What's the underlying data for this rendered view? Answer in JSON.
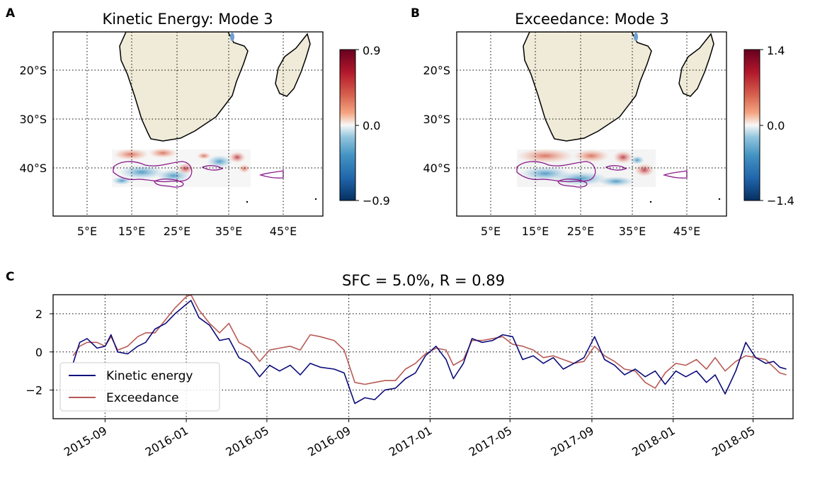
{
  "panels": {
    "a": {
      "letter": "A",
      "title": "Kinetic Energy: Mode 3",
      "lat_ticks": [
        "20°S",
        "30°S",
        "40°S"
      ],
      "lon_ticks": [
        "5°E",
        "15°E",
        "25°E",
        "35°E",
        "45°E"
      ],
      "colorbar": {
        "max_label": "0.9",
        "mid_label": "0.0",
        "min_label": "−0.9",
        "range": [
          -0.9,
          0.9
        ]
      }
    },
    "b": {
      "letter": "B",
      "title": "Exceedance: Mode 3",
      "lat_ticks": [
        "20°S",
        "30°S",
        "40°S"
      ],
      "lon_ticks": [
        "5°E",
        "15°E",
        "25°E",
        "35°E",
        "45°E"
      ],
      "colorbar": {
        "max_label": "1.4",
        "mid_label": "0.0",
        "min_label": "−1.4",
        "range": [
          -1.4,
          1.4
        ]
      }
    },
    "c": {
      "letter": "C",
      "title": "SFC = 5.0%, R = 0.89",
      "y_ticks": [
        "2",
        "0",
        "−2"
      ],
      "x_ticks": [
        "2015-09",
        "2016-01",
        "2016-05",
        "2016-09",
        "2017-01",
        "2017-05",
        "2017-09",
        "2018-01",
        "2018-05"
      ],
      "legend": [
        {
          "label": "Kinetic energy",
          "color": "#0b0b7a"
        },
        {
          "label": "Exceedance",
          "color": "#b85a55"
        }
      ]
    }
  },
  "colors": {
    "land": "#efebd8",
    "contour": "#8b1a8b",
    "kinetic": "#0b0b7a",
    "exceedance": "#b85a55"
  },
  "chart_data": {
    "type": "line",
    "x_label": "",
    "y_label": "",
    "ylim": [
      -3.5,
      3.0
    ],
    "x_range": [
      "2015-06-15",
      "2018-06-30"
    ],
    "grid": true,
    "legend_position": "lower-left",
    "series": [
      {
        "name": "Kinetic energy",
        "points": [
          [
            "2015-07-15",
            -0.6
          ],
          [
            "2015-07-25",
            0.5
          ],
          [
            "2015-08-05",
            0.7
          ],
          [
            "2015-08-20",
            0.2
          ],
          [
            "2015-09-01",
            0.3
          ],
          [
            "2015-09-10",
            0.9
          ],
          [
            "2015-09-20",
            0.0
          ],
          [
            "2015-10-05",
            -0.1
          ],
          [
            "2015-10-20",
            0.3
          ],
          [
            "2015-11-01",
            0.5
          ],
          [
            "2015-11-15",
            1.2
          ],
          [
            "2015-12-01",
            1.5
          ],
          [
            "2015-12-15",
            2.0
          ],
          [
            "2016-01-01",
            2.5
          ],
          [
            "2016-01-08",
            2.7
          ],
          [
            "2016-01-20",
            1.8
          ],
          [
            "2016-02-05",
            1.4
          ],
          [
            "2016-02-20",
            0.6
          ],
          [
            "2016-03-05",
            0.7
          ],
          [
            "2016-03-20",
            -0.3
          ],
          [
            "2016-04-05",
            -0.6
          ],
          [
            "2016-04-20",
            -1.3
          ],
          [
            "2016-05-05",
            -0.7
          ],
          [
            "2016-05-20",
            -1.0
          ],
          [
            "2016-06-05",
            -0.7
          ],
          [
            "2016-06-20",
            -1.2
          ],
          [
            "2016-07-05",
            -0.6
          ],
          [
            "2016-07-20",
            -0.8
          ],
          [
            "2016-08-10",
            -0.9
          ],
          [
            "2016-08-25",
            -1.1
          ],
          [
            "2016-09-10",
            -2.7
          ],
          [
            "2016-09-25",
            -2.4
          ],
          [
            "2016-10-10",
            -2.5
          ],
          [
            "2016-10-25",
            -2.0
          ],
          [
            "2016-11-10",
            -1.9
          ],
          [
            "2016-11-25",
            -1.4
          ],
          [
            "2016-12-10",
            -1.1
          ],
          [
            "2016-12-25",
            -0.2
          ],
          [
            "2017-01-10",
            0.3
          ],
          [
            "2017-01-25",
            -0.4
          ],
          [
            "2017-02-05",
            -1.4
          ],
          [
            "2017-02-20",
            -0.6
          ],
          [
            "2017-03-05",
            0.7
          ],
          [
            "2017-03-20",
            0.5
          ],
          [
            "2017-04-05",
            0.6
          ],
          [
            "2017-04-20",
            0.9
          ],
          [
            "2017-05-05",
            0.8
          ],
          [
            "2017-05-20",
            -0.4
          ],
          [
            "2017-06-05",
            -0.2
          ],
          [
            "2017-06-20",
            -0.6
          ],
          [
            "2017-07-05",
            -0.3
          ],
          [
            "2017-07-20",
            -0.9
          ],
          [
            "2017-08-05",
            -0.6
          ],
          [
            "2017-08-20",
            -0.3
          ],
          [
            "2017-09-05",
            0.8
          ],
          [
            "2017-09-20",
            -0.4
          ],
          [
            "2017-10-05",
            -0.7
          ],
          [
            "2017-10-20",
            -1.2
          ],
          [
            "2017-11-05",
            -0.9
          ],
          [
            "2017-11-20",
            -1.3
          ],
          [
            "2017-12-05",
            -1.0
          ],
          [
            "2017-12-20",
            -1.7
          ],
          [
            "2018-01-05",
            -1.0
          ],
          [
            "2018-01-20",
            -1.3
          ],
          [
            "2018-02-05",
            -1.0
          ],
          [
            "2018-02-20",
            -1.6
          ],
          [
            "2018-03-05",
            -1.2
          ],
          [
            "2018-03-20",
            -2.2
          ],
          [
            "2018-04-05",
            -1.0
          ],
          [
            "2018-04-20",
            0.5
          ],
          [
            "2018-05-05",
            -0.3
          ],
          [
            "2018-05-20",
            -0.6
          ],
          [
            "2018-06-01",
            -0.5
          ],
          [
            "2018-06-10",
            -0.8
          ],
          [
            "2018-06-20",
            -0.9
          ]
        ]
      },
      {
        "name": "Exceedance",
        "points": [
          [
            "2015-07-15",
            -0.2
          ],
          [
            "2015-07-25",
            0.3
          ],
          [
            "2015-08-05",
            0.5
          ],
          [
            "2015-08-20",
            0.5
          ],
          [
            "2015-09-01",
            0.3
          ],
          [
            "2015-09-10",
            0.8
          ],
          [
            "2015-09-20",
            0.1
          ],
          [
            "2015-10-05",
            0.3
          ],
          [
            "2015-10-20",
            0.8
          ],
          [
            "2015-11-01",
            1.0
          ],
          [
            "2015-11-15",
            1.0
          ],
          [
            "2015-12-01",
            1.7
          ],
          [
            "2015-12-15",
            2.3
          ],
          [
            "2016-01-01",
            2.9
          ],
          [
            "2016-01-08",
            3.0
          ],
          [
            "2016-01-20",
            2.2
          ],
          [
            "2016-02-05",
            1.5
          ],
          [
            "2016-02-20",
            1.0
          ],
          [
            "2016-03-05",
            1.5
          ],
          [
            "2016-03-20",
            0.5
          ],
          [
            "2016-04-05",
            0.2
          ],
          [
            "2016-04-20",
            -0.5
          ],
          [
            "2016-05-05",
            0.1
          ],
          [
            "2016-05-20",
            0.2
          ],
          [
            "2016-06-05",
            0.3
          ],
          [
            "2016-06-20",
            0.1
          ],
          [
            "2016-07-05",
            0.9
          ],
          [
            "2016-07-20",
            0.8
          ],
          [
            "2016-08-10",
            0.6
          ],
          [
            "2016-08-25",
            0.1
          ],
          [
            "2016-09-10",
            -1.6
          ],
          [
            "2016-09-25",
            -1.7
          ],
          [
            "2016-10-10",
            -1.6
          ],
          [
            "2016-10-25",
            -1.5
          ],
          [
            "2016-11-10",
            -1.5
          ],
          [
            "2016-11-25",
            -0.9
          ],
          [
            "2016-12-10",
            -0.6
          ],
          [
            "2016-12-25",
            -0.1
          ],
          [
            "2017-01-10",
            0.2
          ],
          [
            "2017-01-25",
            0.1
          ],
          [
            "2017-02-05",
            -0.7
          ],
          [
            "2017-02-20",
            -0.4
          ],
          [
            "2017-03-05",
            0.6
          ],
          [
            "2017-03-20",
            0.6
          ],
          [
            "2017-04-05",
            0.7
          ],
          [
            "2017-04-20",
            0.8
          ],
          [
            "2017-05-05",
            0.4
          ],
          [
            "2017-05-20",
            0.3
          ],
          [
            "2017-06-05",
            0.1
          ],
          [
            "2017-06-20",
            -0.3
          ],
          [
            "2017-07-05",
            -0.2
          ],
          [
            "2017-07-20",
            -0.4
          ],
          [
            "2017-08-05",
            -0.6
          ],
          [
            "2017-08-20",
            -0.5
          ],
          [
            "2017-09-05",
            0.3
          ],
          [
            "2017-09-20",
            -0.2
          ],
          [
            "2017-10-05",
            -0.5
          ],
          [
            "2017-10-20",
            -0.9
          ],
          [
            "2017-11-05",
            -1.0
          ],
          [
            "2017-11-20",
            -1.6
          ],
          [
            "2017-12-05",
            -1.9
          ],
          [
            "2017-12-20",
            -1.1
          ],
          [
            "2018-01-05",
            -0.6
          ],
          [
            "2018-01-20",
            -0.7
          ],
          [
            "2018-02-05",
            -0.4
          ],
          [
            "2018-02-20",
            -0.9
          ],
          [
            "2018-03-05",
            -0.3
          ],
          [
            "2018-03-20",
            -1.0
          ],
          [
            "2018-04-05",
            -0.5
          ],
          [
            "2018-04-20",
            -0.2
          ],
          [
            "2018-05-05",
            -0.3
          ],
          [
            "2018-05-20",
            -0.4
          ],
          [
            "2018-06-01",
            -0.8
          ],
          [
            "2018-06-10",
            -1.1
          ],
          [
            "2018-06-20",
            -1.2
          ]
        ]
      }
    ]
  }
}
